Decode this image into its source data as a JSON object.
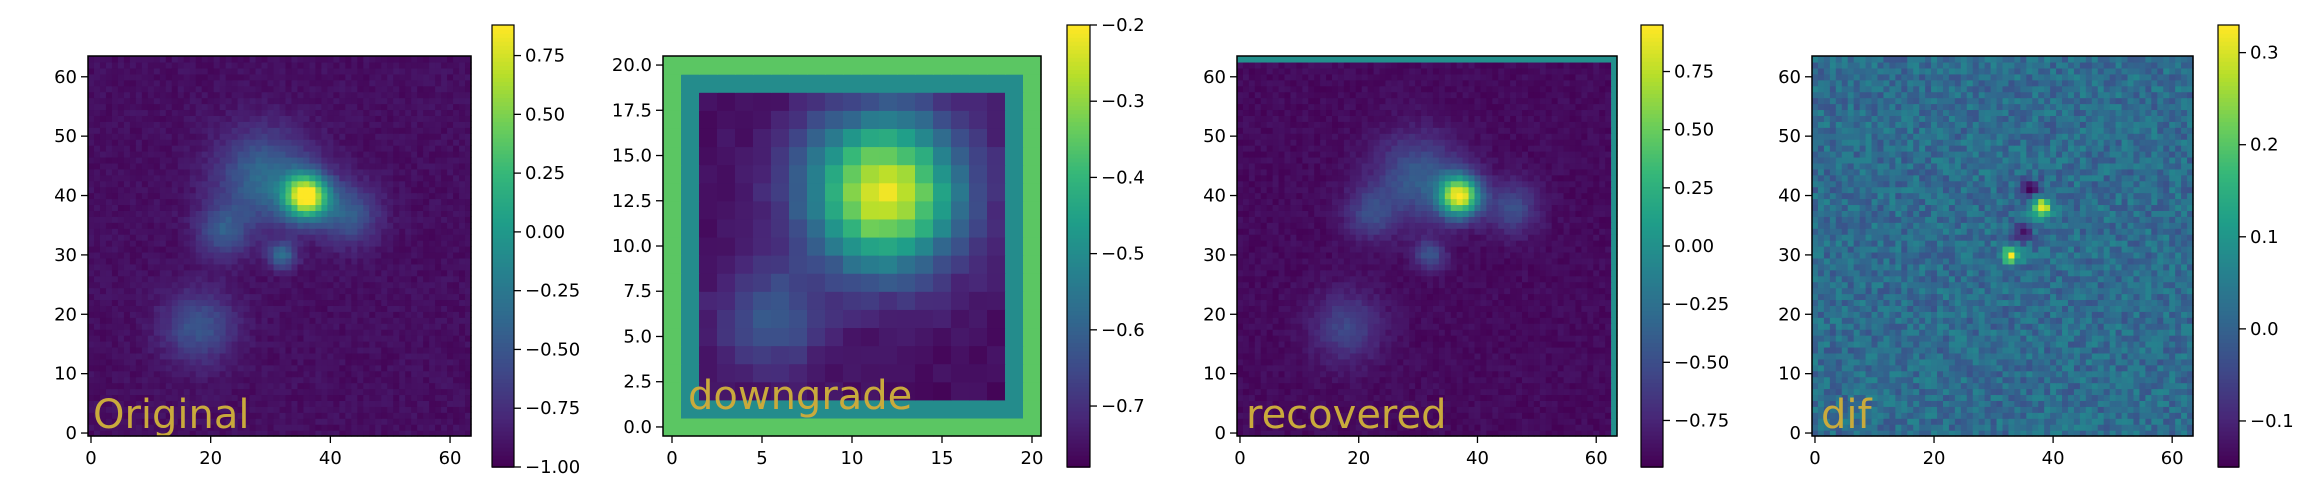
{
  "chart_data": [
    {
      "type": "heatmap",
      "label": "Original",
      "xlim": [
        0,
        63
      ],
      "ylim": [
        0,
        63
      ],
      "xticks": [
        0,
        20,
        40,
        60
      ],
      "yticks": [
        0,
        10,
        20,
        30,
        40,
        50,
        60
      ],
      "grid": false,
      "colormap": "viridis",
      "colorbar": {
        "min": -1.0,
        "max": 0.88,
        "ticks": [
          -1.0,
          -0.75,
          -0.5,
          -0.25,
          0.0,
          0.25,
          0.5,
          0.75
        ]
      },
      "features": [
        {
          "x": 36,
          "y": 40,
          "value": 0.85,
          "sigma": 2.6
        },
        {
          "x": 29,
          "y": 43,
          "value": -0.35,
          "sigma": 5.5
        },
        {
          "x": 22,
          "y": 34,
          "value": -0.5,
          "sigma": 3.0
        },
        {
          "x": 43,
          "y": 37,
          "value": -0.45,
          "sigma": 3.5
        },
        {
          "x": 32,
          "y": 30,
          "value": -0.35,
          "sigma": 1.6
        },
        {
          "x": 18,
          "y": 18,
          "value": -0.5,
          "sigma": 4.2
        }
      ],
      "background": -0.93
    },
    {
      "type": "heatmap",
      "label": "downgrade",
      "xlim": [
        0,
        20
      ],
      "ylim": [
        0,
        20
      ],
      "xticks": [
        0,
        5,
        10,
        15,
        20
      ],
      "yticks": [
        0.0,
        2.5,
        5.0,
        7.5,
        10.0,
        12.5,
        15.0,
        17.5,
        20.0
      ],
      "grid": false,
      "colormap": "viridis",
      "colorbar": {
        "min": -0.78,
        "max": -0.2,
        "ticks": [
          -0.7,
          -0.6,
          -0.5,
          -0.4,
          -0.3,
          -0.2
        ]
      },
      "features": [
        {
          "x": 11.8,
          "y": 13,
          "value": -0.22,
          "sigma": 3.0
        },
        {
          "x": 5.5,
          "y": 6,
          "value": -0.62,
          "sigma": 2.0
        }
      ],
      "background": -0.76,
      "border_value": -0.45
    },
    {
      "type": "heatmap",
      "label": "recovered",
      "xlim": [
        0,
        63
      ],
      "ylim": [
        0,
        63
      ],
      "xticks": [
        0,
        20,
        40,
        60
      ],
      "yticks": [
        0,
        10,
        20,
        30,
        40,
        50,
        60
      ],
      "grid": false,
      "colormap": "viridis",
      "colorbar": {
        "min": -0.95,
        "max": 0.95,
        "ticks": [
          -0.75,
          -0.5,
          -0.25,
          0.0,
          0.25,
          0.5,
          0.75
        ]
      },
      "features": [
        {
          "x": 37,
          "y": 40,
          "value": 0.85,
          "sigma": 2.4
        },
        {
          "x": 30,
          "y": 43,
          "value": -0.4,
          "sigma": 5.0
        },
        {
          "x": 22,
          "y": 37,
          "value": -0.55,
          "sigma": 3.0
        },
        {
          "x": 46,
          "y": 38,
          "value": -0.5,
          "sigma": 3.0
        },
        {
          "x": 32,
          "y": 30,
          "value": -0.45,
          "sigma": 1.8
        },
        {
          "x": 18,
          "y": 18,
          "value": -0.55,
          "sigma": 4.0
        }
      ],
      "background": -0.9,
      "edge_value": 0.0
    },
    {
      "type": "heatmap",
      "label": "dif",
      "xlim": [
        0,
        63
      ],
      "ylim": [
        0,
        63
      ],
      "xticks": [
        0,
        20,
        40,
        60
      ],
      "yticks": [
        0,
        10,
        20,
        30,
        40,
        50,
        60
      ],
      "grid": false,
      "colormap": "viridis",
      "colorbar": {
        "min": -0.15,
        "max": 0.33,
        "ticks": [
          -0.1,
          0.0,
          0.1,
          0.2,
          0.3
        ]
      },
      "features": [
        {
          "x": 38,
          "y": 38,
          "value": 0.32,
          "sigma": 1.2
        },
        {
          "x": 33,
          "y": 30,
          "value": 0.3,
          "sigma": 1.0
        },
        {
          "x": 36,
          "y": 41,
          "value": -0.12,
          "sigma": 1.3
        },
        {
          "x": 35,
          "y": 34,
          "value": -0.1,
          "sigma": 1.2
        }
      ],
      "background": 0.02,
      "noise": 0.05
    }
  ]
}
